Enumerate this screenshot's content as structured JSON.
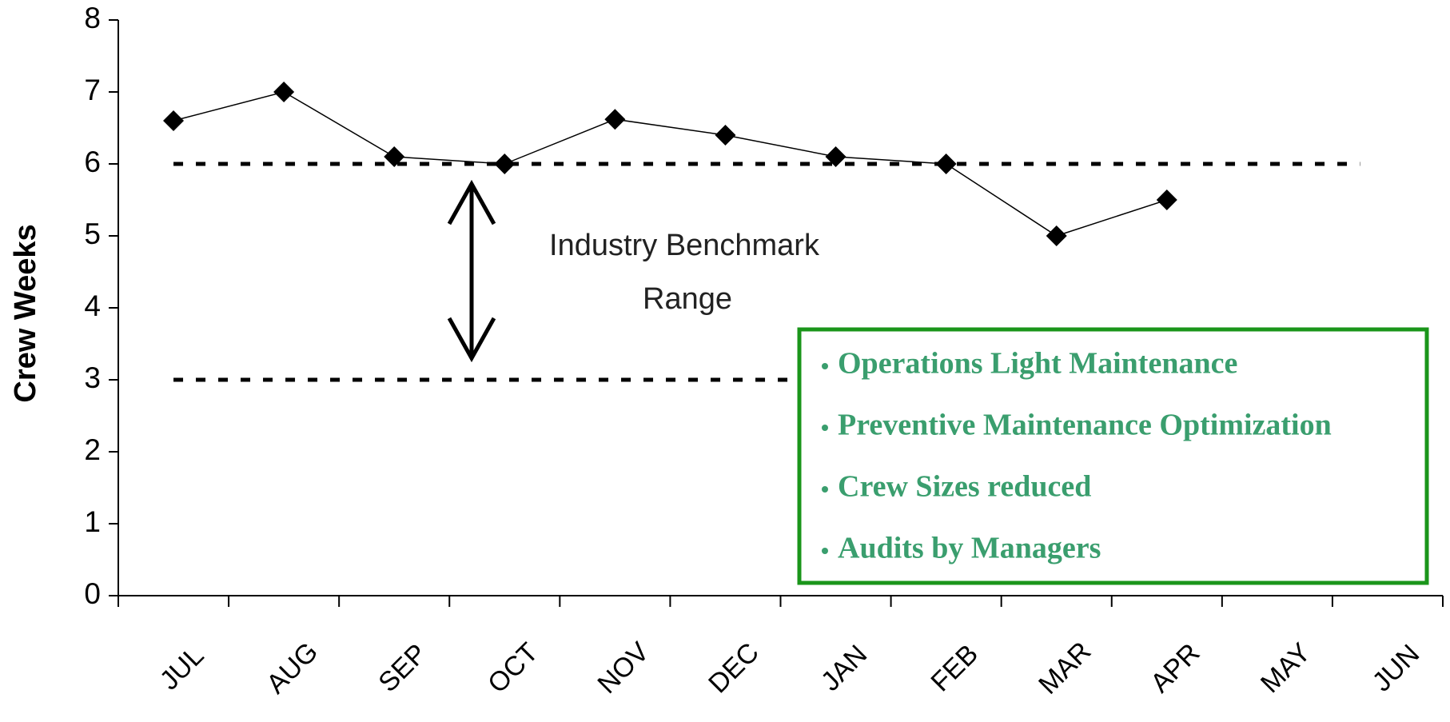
{
  "chart_data": {
    "type": "line",
    "y_label": "Crew Weeks",
    "categories": [
      "JUL",
      "AUG",
      "SEP",
      "OCT",
      "NOV",
      "DEC",
      "JAN",
      "FEB",
      "MAR",
      "APR",
      "MAY",
      "JUN"
    ],
    "series": [
      {
        "name": "Crew Weeks",
        "color": "#000000",
        "values": [
          6.6,
          7.0,
          6.1,
          6.0,
          6.62,
          6.4,
          6.1,
          6.0,
          5.0,
          5.5,
          null,
          null
        ]
      }
    ],
    "ylim": [
      0,
      8
    ],
    "yticks": [
      0,
      1,
      2,
      3,
      4,
      5,
      6,
      7,
      8
    ],
    "reference_lines": [
      6,
      3
    ],
    "annotation": [
      "Industry Benchmark",
      "Range"
    ],
    "notes": [
      "Operations Light Maintenance",
      "Preventive Maintenance Optimization",
      "Crew Sizes reduced",
      "Audits by Managers"
    ]
  }
}
